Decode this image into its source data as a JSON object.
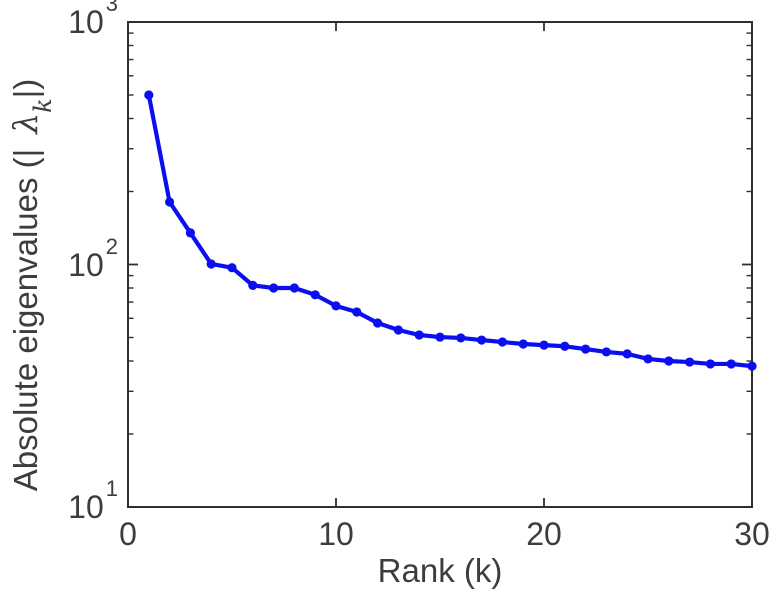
{
  "figure": {
    "background": "#ffffff",
    "axis_color": "#303030",
    "text_color": "#3d3d3d"
  },
  "chart_data": {
    "type": "line",
    "title": "",
    "xlabel": "Rank (k)",
    "ylabel": {
      "prefix": "Absolute eigenvalues (|",
      "symbol": "λ",
      "subscript": "k",
      "suffix": "|)"
    },
    "yscale": "log",
    "xlim": [
      0,
      30
    ],
    "ylim": [
      10,
      1000
    ],
    "grid": false,
    "legend": "none",
    "xticks": [
      0,
      10,
      20,
      30
    ],
    "xtick_labels": [
      "0",
      "10",
      "20",
      "30"
    ],
    "ytick_exponents": [
      {
        "base": "10",
        "exp": "1",
        "value": 10
      },
      {
        "base": "10",
        "exp": "2",
        "value": 100
      },
      {
        "base": "10",
        "exp": "3",
        "value": 1000
      }
    ],
    "x": [
      1,
      2,
      3,
      4,
      5,
      6,
      7,
      8,
      9,
      10,
      11,
      12,
      13,
      14,
      15,
      16,
      17,
      18,
      19,
      20,
      21,
      22,
      23,
      24,
      25,
      26,
      27,
      28,
      29,
      30
    ],
    "series": [
      {
        "name": "absolute-eigenvalues",
        "color": "#0a0ef0",
        "marker": "dot",
        "values": [
          500,
          181,
          135,
          100.5,
          97,
          82,
          80,
          80,
          75,
          67.5,
          63.7,
          57.4,
          53.7,
          51.2,
          50.2,
          49.8,
          48.8,
          47.9,
          47,
          46.5,
          46,
          44.8,
          43.6,
          42.8,
          40.8,
          40,
          39.6,
          38.9,
          38.9,
          38.1
        ]
      }
    ]
  }
}
